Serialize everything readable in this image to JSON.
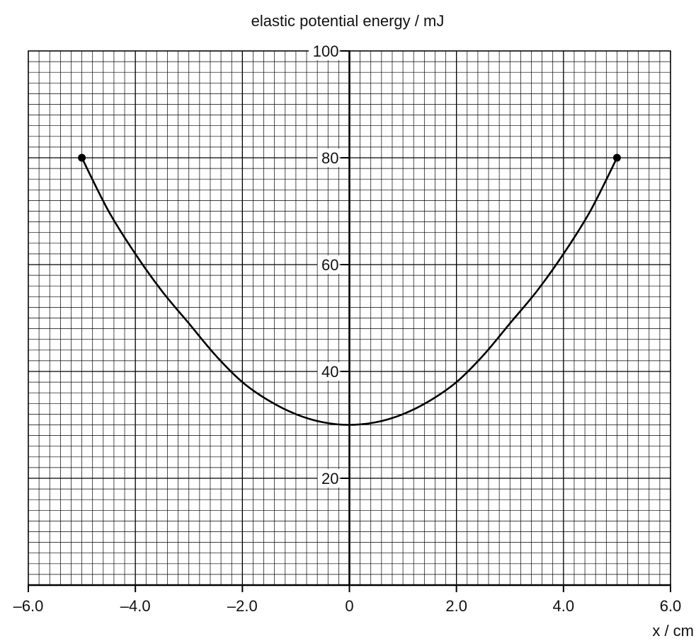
{
  "chart_data": {
    "type": "line",
    "ylabel": "elastic potential energy / mJ",
    "xlabel": "x / cm",
    "xlim": [
      -6.0,
      6.0
    ],
    "ylim": [
      0,
      100
    ],
    "x_ticks": [
      "–6.0",
      "–4.0",
      "–2.0",
      "0",
      "2.0",
      "4.0",
      "6.0"
    ],
    "x_tick_values": [
      -6,
      -4,
      -2,
      0,
      2,
      4,
      6
    ],
    "y_ticks": [
      "20",
      "40",
      "60",
      "80",
      "100"
    ],
    "y_tick_values": [
      20,
      40,
      60,
      80,
      100
    ],
    "grid": {
      "minor_x": 0.2,
      "minor_y": 2,
      "major_x": 2,
      "major_y": 20
    },
    "series": [
      {
        "x": [
          -5,
          -4.5,
          -4,
          -3.5,
          -3,
          -2.5,
          -2,
          -1.5,
          -1,
          -0.5,
          0,
          0.5,
          1,
          1.5,
          2,
          2.5,
          3,
          3.5,
          4,
          4.5,
          5
        ],
        "y": [
          80,
          70,
          62,
          55,
          49,
          43,
          38,
          34.5,
          32,
          30.5,
          30,
          30.5,
          32,
          34.5,
          38,
          43,
          49,
          55,
          62,
          70,
          80
        ],
        "smooth": true
      }
    ],
    "points": [
      {
        "x": -5.0,
        "y": 80
      },
      {
        "x": 5.0,
        "y": 80
      }
    ]
  }
}
